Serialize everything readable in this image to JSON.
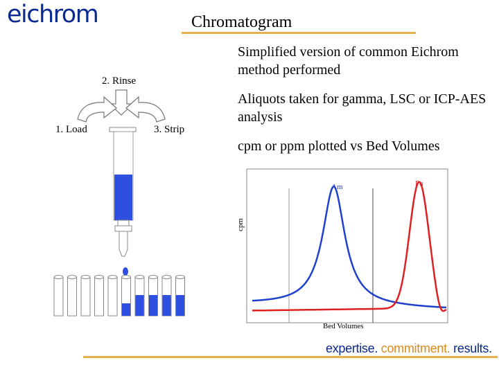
{
  "header": {
    "logo_text": "eichrom",
    "title": "Chromatogram"
  },
  "bullets": [
    "Simplified version of common Eichrom method performed",
    "Aliquots taken for gamma, LSC or ICP-AES analysis",
    "cpm or ppm plotted vs Bed Volumes"
  ],
  "column_diagram": {
    "steps": {
      "load": "1. Load",
      "rinse": "2. Rinse",
      "strip": "3. Strip"
    },
    "tubes_total": 10,
    "tubes_filled": 5
  },
  "chart_data": {
    "type": "line",
    "title": "",
    "xlabel": "Bed Volumes",
    "ylabel": "cpm",
    "grid": "vertical lines at two bed-volume marks",
    "series": [
      {
        "name": "Am",
        "color": "#1f3fcf"
      },
      {
        "name": "Pu",
        "color": "#e02020"
      }
    ]
  },
  "footer": {
    "tag_1": "expertise.",
    "tag_2": "commitment.",
    "tag_3": "results."
  },
  "colors": {
    "brand_blue": "#0b2a8f",
    "accent_gold": "#e8b04a",
    "fill_blue": "#2e4fe0",
    "am_blue": "#1f3fcf",
    "pu_red": "#e02020"
  }
}
